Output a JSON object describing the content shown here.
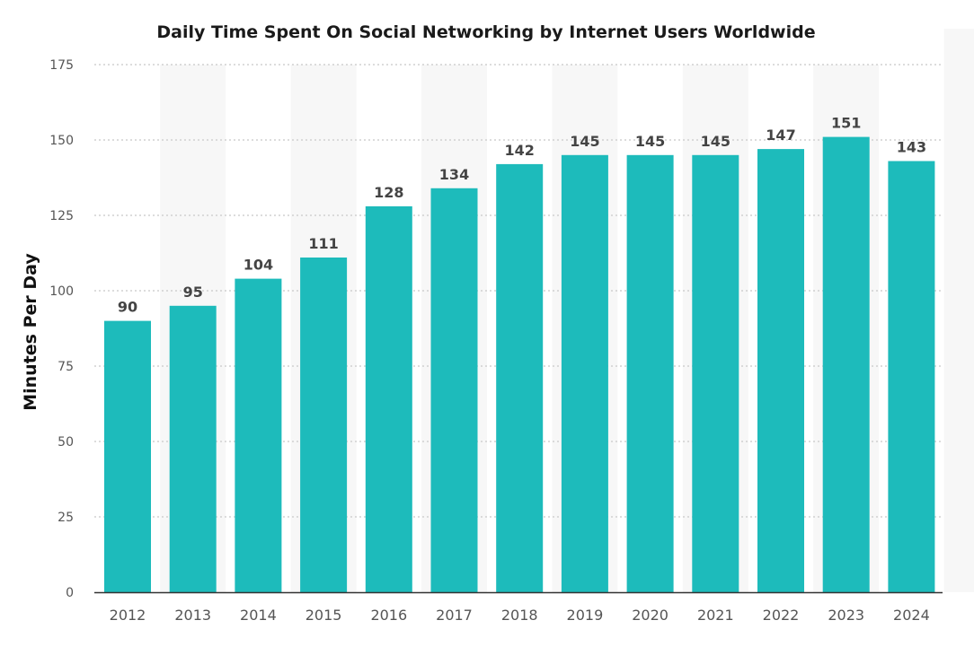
{
  "chart_data": {
    "type": "bar",
    "title": "Daily Time Spent On Social Networking by Internet Users Worldwide",
    "xlabel": "",
    "ylabel": "Minutes Per Day",
    "categories": [
      "2012",
      "2013",
      "2014",
      "2015",
      "2016",
      "2017",
      "2018",
      "2019",
      "2020",
      "2021",
      "2022",
      "2023",
      "2024"
    ],
    "values": [
      90,
      95,
      104,
      111,
      128,
      134,
      142,
      145,
      145,
      145,
      147,
      151,
      143
    ],
    "ylim": [
      0,
      175
    ],
    "yticks": [
      0,
      25,
      50,
      75,
      100,
      125,
      150,
      175
    ],
    "grid": true,
    "legend": "none",
    "colors": {
      "bar": "#1dbbbb",
      "band": "#f7f7f7"
    }
  }
}
